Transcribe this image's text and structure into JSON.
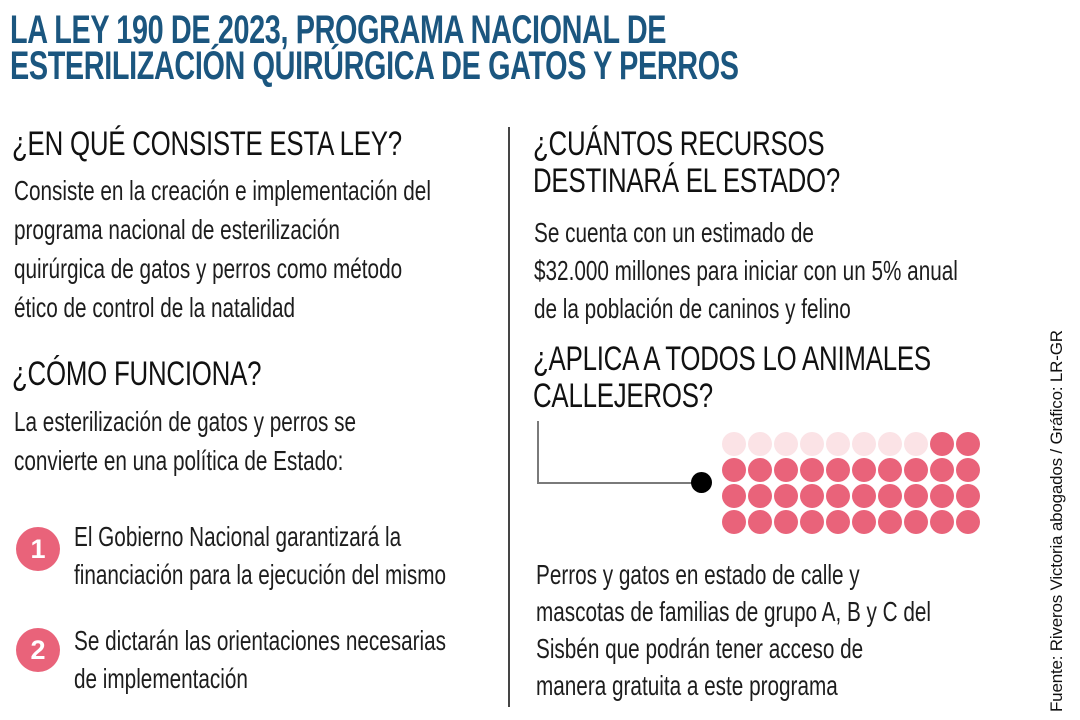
{
  "colors": {
    "title_blue": "#1b567f",
    "accent_pink": "#e9637a",
    "light_pink": "#fbe3e6",
    "connector_gray": "#7a7a7a",
    "divider_gray": "#454545"
  },
  "title": {
    "lines": [
      "LA LEY 190 DE 2023, PROGRAMA NACIONAL DE",
      "ESTERILIZACIÓN QUIRÚRGICA DE GATOS Y PERROS"
    ]
  },
  "left_column": {
    "consiste": {
      "heading": "¿EN QUÉ CONSISTE ESTA LEY?",
      "body": [
        "Consiste en la creación e implementación del",
        "programa nacional de esterilización",
        "quirúrgica de gatos y perros como método",
        "ético de control de la natalidad"
      ]
    },
    "funciona": {
      "heading": "¿CÓMO FUNCIONA?",
      "body": [
        "La esterilización de gatos y perros se",
        "convierte en una política de Estado:"
      ],
      "items": [
        {
          "number": "1",
          "text": [
            "El Gobierno Nacional garantizará la",
            "financiación para la ejecución del mismo"
          ]
        },
        {
          "number": "2",
          "text": [
            "Se dictarán las orientaciones necesarias",
            "de implementación"
          ]
        }
      ]
    }
  },
  "right_column": {
    "recursos": {
      "heading": [
        "¿CUÁNTOS RECURSOS",
        "DESTINARÁ EL ESTADO?"
      ],
      "body": [
        "Se cuenta con un estimado de",
        "$32.000 millones para iniciar con un 5% anual",
        "de la población de caninos y felino"
      ]
    },
    "aplica": {
      "heading": [
        "¿APLICA A TODOS LO ANIMALES",
        "CALLEJEROS?"
      ],
      "body": [
        "Perros y gatos en estado de calle y",
        "mascotas de familias de grupo A, B y C del",
        "Sisbén que podrán tener acceso de",
        "manera gratuita a este programa"
      ],
      "dot_chart": {
        "type": "pictograph",
        "rows": 4,
        "cols": 10,
        "total_dots": 40,
        "dark_dots": 32,
        "light_dots": 8,
        "grid": [
          "LLLLLLLLDD",
          "DDDDDDDDDD",
          "DDDDDDDDDD",
          "DDDDDDDDDD"
        ]
      }
    }
  },
  "source": {
    "credit": "Fuente: Riveros Victoria abogados / Gráfico: LR-GR"
  }
}
